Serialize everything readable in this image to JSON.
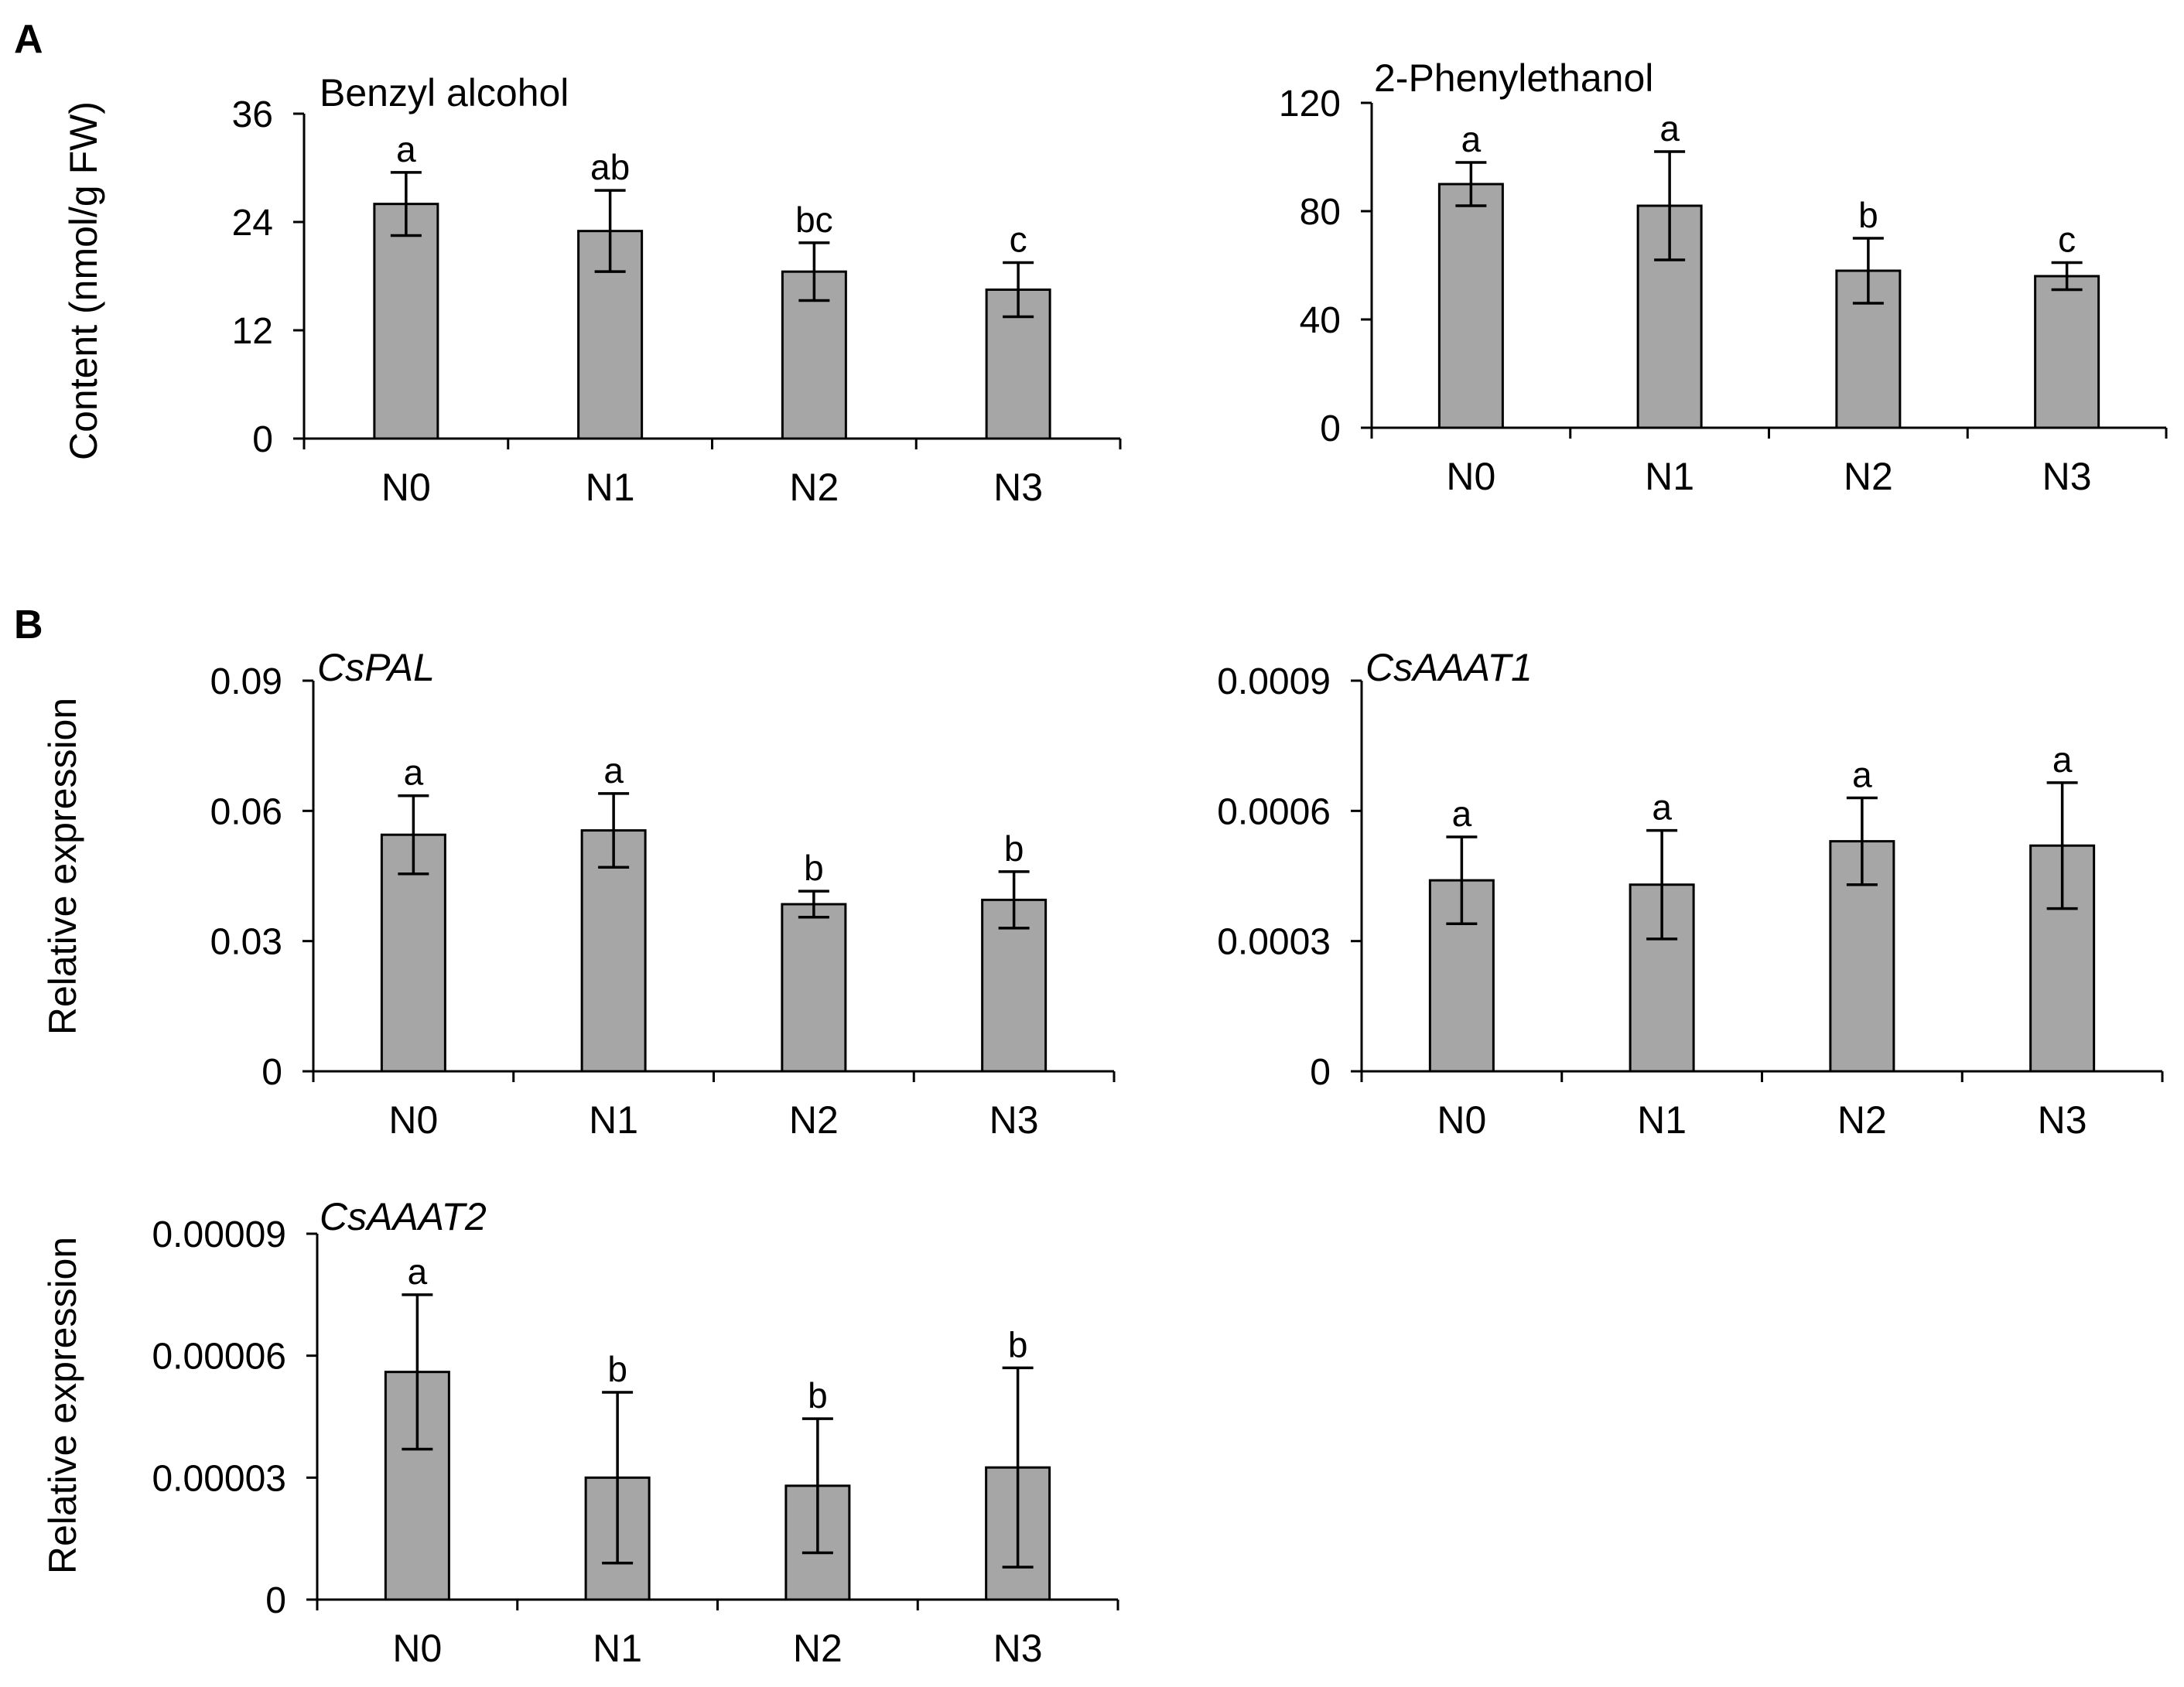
{
  "panel_labels": [
    "A",
    "B"
  ],
  "axis_labels": {
    "content": "Content (nmol/g FW)",
    "expression": "Relative expression"
  },
  "chart_data": [
    {
      "type": "bar",
      "title": "Benzyl alcohol",
      "title_italic": false,
      "ylabel": "Content (nmol/g FW)",
      "categories": [
        "N0",
        "N1",
        "N2",
        "N3"
      ],
      "values": [
        26,
        23,
        18.5,
        16.5
      ],
      "errors": [
        3.5,
        4.5,
        3.2,
        3
      ],
      "significance": [
        "a",
        "ab",
        "bc",
        "c"
      ],
      "ylim": [
        0,
        36
      ],
      "yticks": [
        "0",
        "12",
        "24",
        "36"
      ]
    },
    {
      "type": "bar",
      "title": "2-Phenylethanol",
      "title_italic": false,
      "ylabel": "",
      "categories": [
        "N0",
        "N1",
        "N2",
        "N3"
      ],
      "values": [
        90,
        82,
        58,
        56
      ],
      "errors": [
        8,
        20,
        12,
        5
      ],
      "significance": [
        "a",
        "a",
        "b",
        "c"
      ],
      "ylim": [
        0,
        120
      ],
      "yticks": [
        "0",
        "40",
        "80",
        "120"
      ]
    },
    {
      "type": "bar",
      "title": "CsPAL",
      "title_italic": true,
      "ylabel": "Relative expression",
      "categories": [
        "N0",
        "N1",
        "N2",
        "N3"
      ],
      "values": [
        0.0545,
        0.0555,
        0.0385,
        0.0395
      ],
      "errors": [
        0.009,
        0.0085,
        0.003,
        0.0065
      ],
      "significance": [
        "a",
        "a",
        "b",
        "b"
      ],
      "ylim": [
        0,
        0.09
      ],
      "yticks": [
        "0",
        "0.03",
        "0.06",
        "0.09"
      ]
    },
    {
      "type": "bar",
      "title": "CsAAAT1",
      "title_italic": true,
      "ylabel": "",
      "categories": [
        "N0",
        "N1",
        "N2",
        "N3"
      ],
      "values": [
        0.00044,
        0.00043,
        0.00053,
        0.00052
      ],
      "errors": [
        0.0001,
        0.000125,
        0.0001,
        0.000145
      ],
      "significance": [
        "a",
        "a",
        "a",
        "a"
      ],
      "ylim": [
        0,
        0.0009
      ],
      "yticks": [
        "0",
        "0.0003",
        "0.0006",
        "0.0009"
      ]
    },
    {
      "type": "bar",
      "title": "CsAAAT2",
      "title_italic": true,
      "ylabel": "Relative expression",
      "categories": [
        "N0",
        "N1",
        "N2",
        "N3"
      ],
      "values": [
        5.6e-05,
        3e-05,
        2.8e-05,
        3.25e-05
      ],
      "errors": [
        1.9e-05,
        2.1e-05,
        1.65e-05,
        2.45e-05
      ],
      "significance": [
        "a",
        "b",
        "b",
        "b"
      ],
      "ylim": [
        0,
        9e-05
      ],
      "yticks": [
        "0",
        "0.00003",
        "0.00006",
        "0.00009"
      ]
    }
  ]
}
